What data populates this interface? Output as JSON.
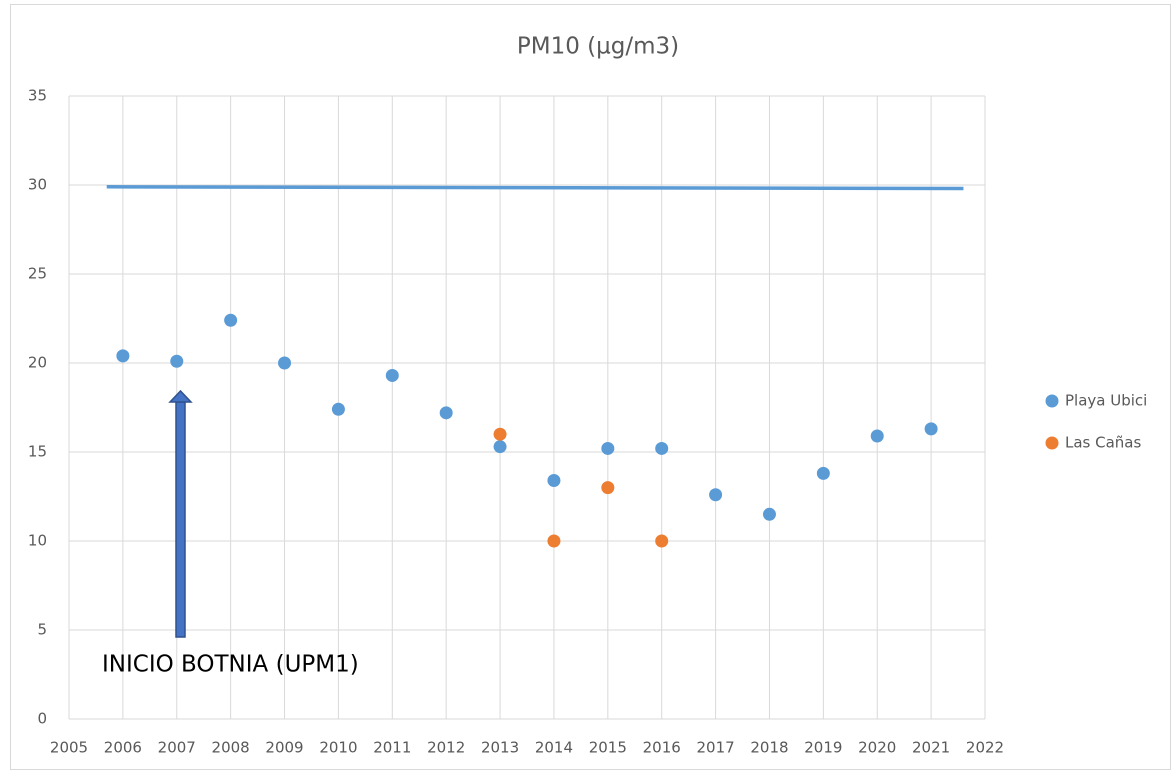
{
  "chart_data": {
    "type": "scatter",
    "title": "PM10 (µg/m3)",
    "series": [
      {
        "name": "Playa Ubici",
        "color": "#5b9bd5",
        "x": [
          2006,
          2007,
          2008,
          2009,
          2010,
          2011,
          2012,
          2013,
          2014,
          2015,
          2016,
          2017,
          2018,
          2019,
          2020,
          2021
        ],
        "values": [
          20.4,
          20.1,
          22.4,
          20.0,
          17.4,
          19.3,
          17.2,
          15.3,
          13.4,
          15.2,
          15.2,
          12.6,
          11.5,
          13.8,
          15.9,
          16.3
        ]
      },
      {
        "name": "Las Cañas",
        "color": "#ed7d31",
        "x": [
          2013,
          2014,
          2015,
          2016
        ],
        "values": [
          16,
          10,
          13,
          10
        ]
      }
    ],
    "lines": [
      {
        "color": "#5b9bd5",
        "x": [
          2005.7,
          2021.6
        ],
        "values": [
          29.9,
          29.8
        ]
      }
    ],
    "annotation": "INICIO BOTNIA (UPM1)",
    "xlim": [
      2005,
      2022
    ],
    "xticks": [
      2005,
      2006,
      2007,
      2008,
      2009,
      2010,
      2011,
      2012,
      2013,
      2014,
      2015,
      2016,
      2017,
      2018,
      2019,
      2020,
      2021,
      2022
    ],
    "ylim": [
      0,
      35
    ],
    "yticks": [
      0,
      5,
      10,
      15,
      20,
      25,
      30,
      35
    ],
    "grid": true,
    "legend": "right"
  }
}
